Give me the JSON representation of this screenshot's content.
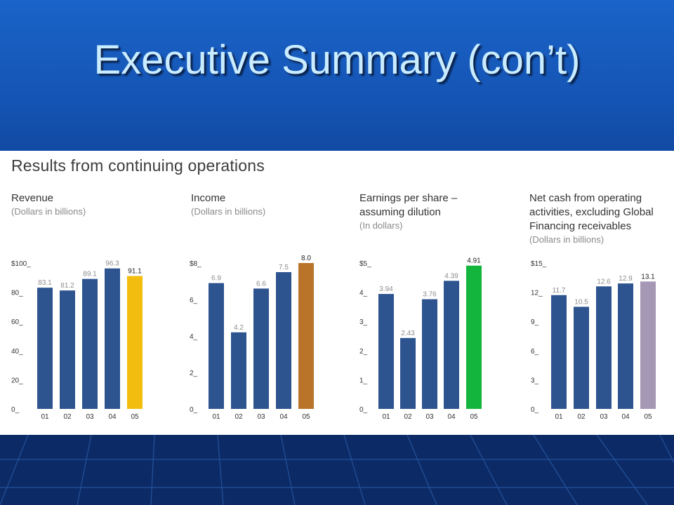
{
  "slide": {
    "title": "Executive Summary (con’t)"
  },
  "panel": {
    "section_title": "Results from continuing operations"
  },
  "colors": {
    "bar_default": "#2e5490",
    "highlight_revenue": "#f2bd0f",
    "highlight_income": "#b9742a",
    "highlight_eps": "#14b53c",
    "highlight_netcash": "#a598b4"
  },
  "chart_data": [
    {
      "type": "bar",
      "title": "Revenue",
      "subtitle": "(Dollars in billions)",
      "categories": [
        "01",
        "02",
        "03",
        "04",
        "05"
      ],
      "values": [
        83.1,
        81.2,
        89.1,
        96.3,
        91.1
      ],
      "value_labels": [
        "83.1",
        "81.2",
        "89.1",
        "96.3",
        "91.1"
      ],
      "ylim": [
        0,
        100
      ],
      "yticks": [
        "0_",
        "20_",
        "40_",
        "60_",
        "80_",
        "$100_"
      ],
      "highlight_color": "#f2bd0f"
    },
    {
      "type": "bar",
      "title": "Income",
      "subtitle": "(Dollars in billions)",
      "categories": [
        "01",
        "02",
        "03",
        "04",
        "05"
      ],
      "values": [
        6.9,
        4.2,
        6.6,
        7.5,
        8.0
      ],
      "value_labels": [
        "6.9",
        "4.2",
        "6.6",
        "7.5",
        "8.0"
      ],
      "ylim": [
        0,
        8
      ],
      "yticks": [
        "0_",
        "2_",
        "4_",
        "6_",
        "$8_"
      ],
      "highlight_color": "#b9742a"
    },
    {
      "type": "bar",
      "title": "Earnings per share –\nassuming dilution",
      "subtitle": "(In dollars)",
      "categories": [
        "01",
        "02",
        "03",
        "04",
        "05"
      ],
      "values": [
        3.94,
        2.43,
        3.76,
        4.39,
        4.91
      ],
      "value_labels": [
        "3.94",
        "2.43",
        "3.76",
        "4.39",
        "4.91"
      ],
      "ylim": [
        0,
        5
      ],
      "yticks": [
        "0_",
        "1_",
        "2_",
        "3_",
        "4_",
        "$5_"
      ],
      "highlight_color": "#14b53c"
    },
    {
      "type": "bar",
      "title": "Net cash from operating\nactivities, excluding Global\nFinancing receivables",
      "subtitle": "(Dollars in billions)",
      "categories": [
        "01",
        "02",
        "03",
        "04",
        "05"
      ],
      "values": [
        11.7,
        10.5,
        12.6,
        12.9,
        13.1
      ],
      "value_labels": [
        "11.7",
        "10.5",
        "12.6",
        "12.9",
        "13.1"
      ],
      "ylim": [
        0,
        15
      ],
      "yticks": [
        "0_",
        "3_",
        "6_",
        "9_",
        "12_",
        "$15_"
      ],
      "highlight_color": "#a598b4"
    }
  ]
}
